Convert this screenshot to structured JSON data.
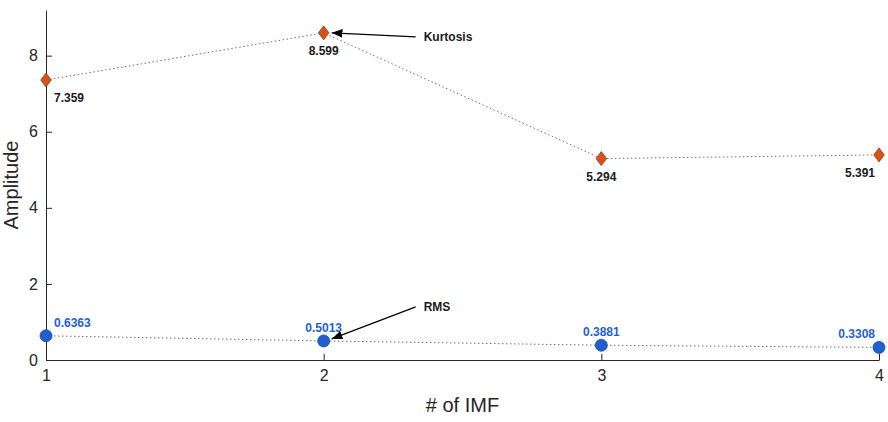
{
  "chart_data": {
    "type": "line",
    "x": [
      1,
      2,
      3,
      4
    ],
    "xlim": [
      1,
      4
    ],
    "xticks": [
      1,
      2,
      3,
      4
    ],
    "ylim": [
      0,
      9.2
    ],
    "yticks": [
      0,
      2,
      4,
      6,
      8
    ],
    "x_label": "# of IMF",
    "y_label": "Amplitude",
    "grid": false,
    "data_labels": true,
    "series": [
      {
        "name": "Kurtosis",
        "color": "#d95319",
        "marker": "diamond",
        "line_style": "dotted",
        "values": [
          7.359,
          8.599,
          5.294,
          5.391
        ]
      },
      {
        "name": "RMS",
        "color": "#1f5fcf",
        "marker": "circle",
        "line_style": "dotted",
        "values": [
          0.6363,
          0.5013,
          0.3881,
          0.3308
        ]
      }
    ],
    "annotations": [
      {
        "series": 0,
        "index": 1
      },
      {
        "series": 1,
        "index": 1
      }
    ]
  }
}
